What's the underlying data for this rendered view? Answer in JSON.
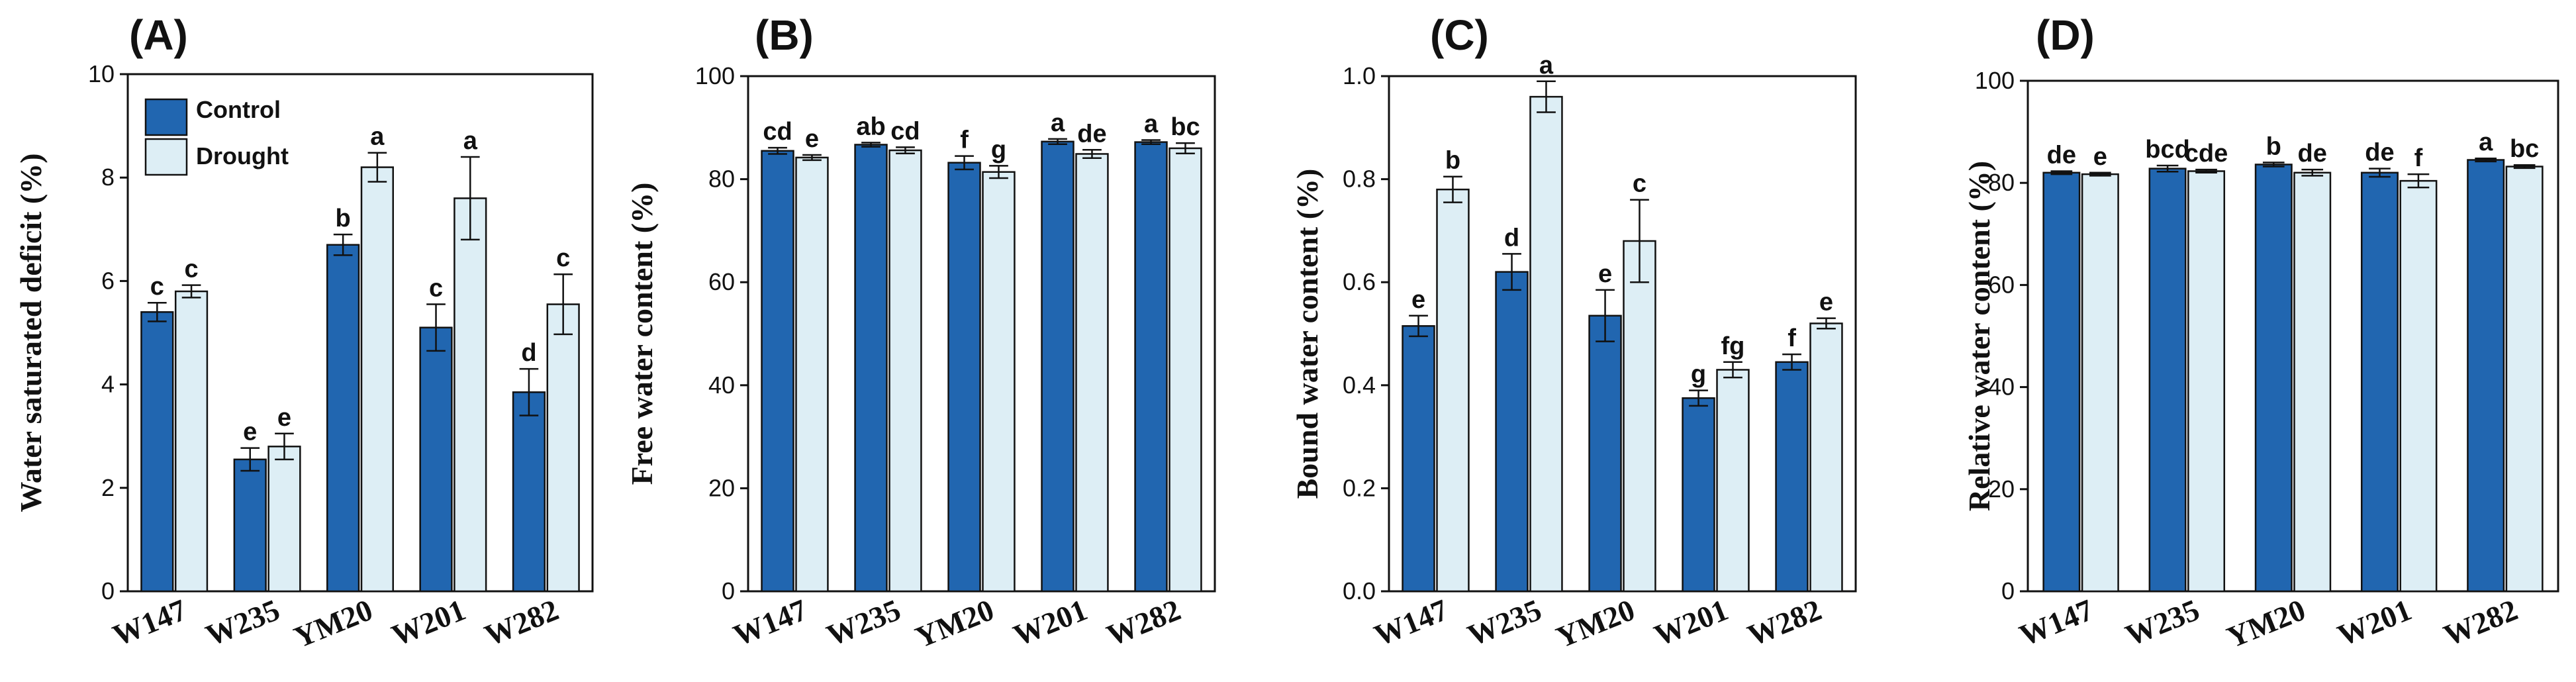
{
  "colors": {
    "control": "#2166b0",
    "drought": "#ddeef5",
    "axis": "#111111"
  },
  "legend": {
    "control_label": "Control",
    "drought_label": "Drought"
  },
  "chart_data": [
    {
      "type": "bar",
      "panel": "(A)",
      "ylabel": "Water saturated deficit (%)",
      "ylim": [
        0,
        10
      ],
      "yticks": [
        0,
        2,
        4,
        6,
        8,
        10
      ],
      "ytick_labels": [
        "0",
        "2",
        "4",
        "6",
        "8",
        "10"
      ],
      "categories": [
        "W147",
        "W235",
        "YM20",
        "W201",
        "W282"
      ],
      "series": [
        {
          "name": "Control",
          "values": [
            5.4,
            2.55,
            6.7,
            5.1,
            3.85
          ],
          "errors": [
            0.18,
            0.22,
            0.2,
            0.45,
            0.45
          ],
          "letters": [
            "c",
            "e",
            "b",
            "c",
            "d"
          ]
        },
        {
          "name": "Drought",
          "values": [
            5.8,
            2.8,
            8.2,
            7.6,
            5.55
          ],
          "errors": [
            0.12,
            0.25,
            0.28,
            0.8,
            0.58
          ],
          "letters": [
            "c",
            "e",
            "a",
            "a",
            "c"
          ]
        }
      ]
    },
    {
      "type": "bar",
      "panel": "(B)",
      "ylabel": "Free water content  (%)",
      "ylim": [
        0,
        100
      ],
      "yticks": [
        0,
        20,
        40,
        60,
        80,
        100
      ],
      "ytick_labels": [
        "0",
        "20",
        "40",
        "60",
        "80",
        "100"
      ],
      "categories": [
        "W147",
        "W235",
        "YM20",
        "W201",
        "W282"
      ],
      "series": [
        {
          "name": "Control",
          "values": [
            85.5,
            86.7,
            83.2,
            87.3,
            87.2
          ],
          "errors": [
            0.6,
            0.4,
            1.3,
            0.5,
            0.4
          ],
          "letters": [
            "cd",
            "ab",
            "f",
            "a",
            "a"
          ]
        },
        {
          "name": "Drought",
          "values": [
            84.2,
            85.6,
            81.4,
            84.9,
            86.0
          ],
          "errors": [
            0.5,
            0.6,
            1.2,
            0.8,
            1.0
          ],
          "letters": [
            "e",
            "cd",
            "g",
            "de",
            "bc"
          ]
        }
      ]
    },
    {
      "type": "bar",
      "panel": "(C)",
      "ylabel": "Bound water content  (%)",
      "ylim": [
        0,
        1.0
      ],
      "yticks": [
        0,
        0.2,
        0.4,
        0.6,
        0.8,
        1.0
      ],
      "ytick_labels": [
        "0.0",
        "0.2",
        "0.4",
        "0.6",
        "0.8",
        "1.0"
      ],
      "categories": [
        "W147",
        "W235",
        "YM20",
        "W201",
        "W282"
      ],
      "series": [
        {
          "name": "Control",
          "values": [
            0.515,
            0.62,
            0.535,
            0.375,
            0.445
          ],
          "errors": [
            0.02,
            0.035,
            0.05,
            0.015,
            0.015
          ],
          "letters": [
            "e",
            "d",
            "e",
            "g",
            "f"
          ]
        },
        {
          "name": "Drought",
          "values": [
            0.78,
            0.96,
            0.68,
            0.43,
            0.52
          ],
          "errors": [
            0.025,
            0.03,
            0.08,
            0.015,
            0.01
          ],
          "letters": [
            "b",
            "a",
            "c",
            "fg",
            "e"
          ]
        }
      ]
    },
    {
      "type": "bar",
      "panel": "(D)",
      "ylabel": "Relative water content (%)",
      "ylim": [
        0,
        100
      ],
      "yticks": [
        0,
        20,
        40,
        60,
        80,
        100
      ],
      "ytick_labels": [
        "0",
        "20",
        "40",
        "60",
        "80",
        "100"
      ],
      "categories": [
        "W147",
        "W235",
        "YM20",
        "W201",
        "W282"
      ],
      "series": [
        {
          "name": "Control",
          "values": [
            82.0,
            82.8,
            83.6,
            82.0,
            84.5
          ],
          "errors": [
            0.3,
            0.6,
            0.4,
            0.8,
            0.3
          ],
          "letters": [
            "de",
            "bcd",
            "b",
            "de",
            "a"
          ]
        },
        {
          "name": "Drought",
          "values": [
            81.7,
            82.3,
            82.0,
            80.4,
            83.2
          ],
          "errors": [
            0.3,
            0.3,
            0.6,
            1.3,
            0.3
          ],
          "letters": [
            "e",
            "cde",
            "de",
            "f",
            "bc"
          ]
        }
      ]
    }
  ]
}
